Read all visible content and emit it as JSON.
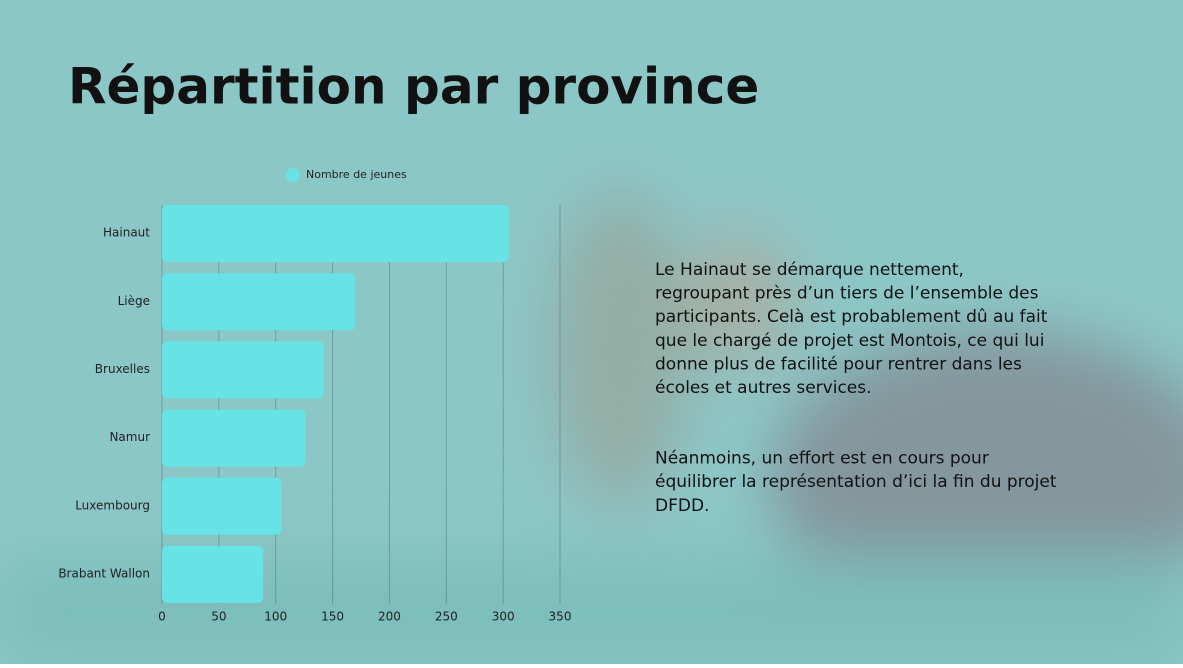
{
  "chart_data": {
    "type": "bar",
    "orientation": "horizontal",
    "title": "Répartition par province",
    "categories": [
      "Hainaut",
      "Liège",
      "Bruxelles",
      "Namur",
      "Luxembourg",
      "Brabant Wallon"
    ],
    "series": [
      {
        "name": "Nombre de jeunes",
        "color": "#67e3e6",
        "values": [
          305,
          170,
          142,
          126,
          105,
          89
        ]
      }
    ],
    "xlim": [
      0,
      350
    ],
    "xticks": [
      0,
      50,
      100,
      150,
      200,
      250,
      300,
      350
    ],
    "grid": true,
    "legend": "top"
  },
  "text": {
    "paragraphs": [
      [
        "Le Hainaut se démarque nettement,",
        "regroupant près d’un tiers de l’ensemble des",
        "participants. Celà est probablement dû au fait",
        "que le chargé de projet est Montois, ce qui lui",
        "donne plus de facilité pour rentrer dans les",
        "écoles et autres services."
      ],
      [
        "Néanmoins, un effort est en cours pour",
        "équilibrer la représentation d’ici la fin du projet",
        "DFDD."
      ]
    ]
  }
}
